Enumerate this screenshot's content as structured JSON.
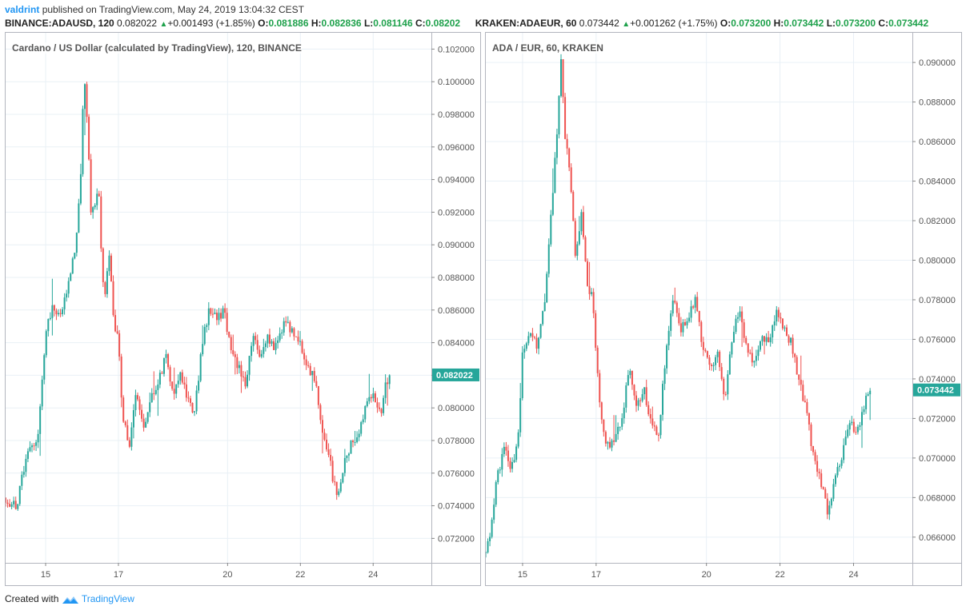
{
  "header": {
    "author": "valdrint",
    "published": "published on TradingView.com, May 24, 2019 13:04:32 CEST"
  },
  "left": {
    "symbol": "BINANCE:ADAUSD, 120",
    "last": "0.082022",
    "change": "+0.001493 (+1.85%)",
    "o_label": "O:",
    "o": "0.081886",
    "h_label": "H:",
    "h": "0.082836",
    "l_label": "L:",
    "l": "0.081146",
    "c_label": "C:",
    "c": "0.08202",
    "title": "Cardano / US Dollar (calculated by TradingView), 120, BINANCE"
  },
  "right": {
    "symbol": "KRAKEN:ADAEUR, 60",
    "last": "0.073442",
    "change": "+0.001262 (+1.75%)",
    "o_label": "O:",
    "o": "0.073200",
    "h_label": "H:",
    "h": "0.073442",
    "l_label": "L:",
    "l": "0.073200",
    "c_label": "C:",
    "c": "0.073442",
    "title": "ADA / EUR, 60, KRAKEN"
  },
  "footer": {
    "created": "Created with",
    "brand": "TradingView"
  },
  "colors": {
    "up": "#26a69a",
    "down": "#ef5350",
    "grid": "#e9f0f6",
    "label_bg": "#26a69a",
    "axis_text": "#555555"
  },
  "chart_data": [
    {
      "type": "candlestick",
      "title": "Cardano / US Dollar (calculated by TradingView), 120, BINANCE",
      "ylim": [
        0.0705,
        0.103
      ],
      "y_ticks": [
        "0.072000",
        "0.074000",
        "0.076000",
        "0.078000",
        "0.080000",
        "0.082000",
        "0.084000",
        "0.086000",
        "0.088000",
        "0.090000",
        "0.092000",
        "0.094000",
        "0.096000",
        "0.098000",
        "0.100000",
        "0.102000"
      ],
      "x_ticks": [
        {
          "label": "15",
          "day": 15
        },
        {
          "label": "17",
          "day": 17
        },
        {
          "label": "20",
          "day": 20
        },
        {
          "label": "22",
          "day": 22
        },
        {
          "label": "24",
          "day": 24
        }
      ],
      "x_range_days": [
        13.9,
        25.6
      ],
      "last_price_label": "0.082022",
      "last_price": 0.082022,
      "path": [
        [
          13.9,
          0.0745
        ],
        [
          14.2,
          0.0738
        ],
        [
          14.5,
          0.0775
        ],
        [
          14.8,
          0.0782
        ],
        [
          15.0,
          0.0848
        ],
        [
          15.2,
          0.0862
        ],
        [
          15.4,
          0.0855
        ],
        [
          15.6,
          0.0875
        ],
        [
          15.8,
          0.0895
        ],
        [
          15.95,
          0.0935
        ],
        [
          16.05,
          0.1005
        ],
        [
          16.15,
          0.0975
        ],
        [
          16.25,
          0.0915
        ],
        [
          16.45,
          0.0935
        ],
        [
          16.6,
          0.0865
        ],
        [
          16.75,
          0.0895
        ],
        [
          16.9,
          0.0845
        ],
        [
          17.0,
          0.0845
        ],
        [
          17.1,
          0.0795
        ],
        [
          17.3,
          0.0778
        ],
        [
          17.5,
          0.0812
        ],
        [
          17.7,
          0.0785
        ],
        [
          17.9,
          0.0808
        ],
        [
          18.1,
          0.0815
        ],
        [
          18.3,
          0.0832
        ],
        [
          18.5,
          0.0808
        ],
        [
          18.7,
          0.0822
        ],
        [
          18.9,
          0.0805
        ],
        [
          19.1,
          0.0798
        ],
        [
          19.3,
          0.0838
        ],
        [
          19.5,
          0.0862
        ],
        [
          19.7,
          0.0855
        ],
        [
          19.9,
          0.086
        ],
        [
          20.1,
          0.0832
        ],
        [
          20.3,
          0.0825
        ],
        [
          20.5,
          0.0815
        ],
        [
          20.7,
          0.0845
        ],
        [
          20.9,
          0.083
        ],
        [
          21.1,
          0.0843
        ],
        [
          21.3,
          0.0835
        ],
        [
          21.6,
          0.0855
        ],
        [
          21.8,
          0.0845
        ],
        [
          22.0,
          0.084
        ],
        [
          22.2,
          0.0823
        ],
        [
          22.4,
          0.0818
        ],
        [
          22.6,
          0.0785
        ],
        [
          22.8,
          0.0768
        ],
        [
          23.0,
          0.0745
        ],
        [
          23.2,
          0.0765
        ],
        [
          23.4,
          0.078
        ],
        [
          23.6,
          0.0782
        ],
        [
          23.8,
          0.08
        ],
        [
          24.0,
          0.0808
        ],
        [
          24.2,
          0.0795
        ],
        [
          24.35,
          0.0816
        ],
        [
          24.45,
          0.082
        ]
      ]
    },
    {
      "type": "candlestick",
      "title": "ADA / EUR, 60, KRAKEN",
      "ylim": [
        0.0647,
        0.0915
      ],
      "y_ticks": [
        "0.066000",
        "0.068000",
        "0.070000",
        "0.072000",
        "0.074000",
        "0.076000",
        "0.078000",
        "0.080000",
        "0.082000",
        "0.084000",
        "0.086000",
        "0.088000",
        "0.090000"
      ],
      "x_ticks": [
        {
          "label": "15",
          "day": 15
        },
        {
          "label": "17",
          "day": 17
        },
        {
          "label": "20",
          "day": 20
        },
        {
          "label": "22",
          "day": 22
        },
        {
          "label": "24",
          "day": 24
        }
      ],
      "x_range_days": [
        14.0,
        25.6
      ],
      "last_price_label": "0.073442",
      "last_price": 0.073442,
      "path": [
        [
          14.0,
          0.0652
        ],
        [
          14.15,
          0.0665
        ],
        [
          14.3,
          0.069
        ],
        [
          14.5,
          0.0705
        ],
        [
          14.7,
          0.0695
        ],
        [
          14.9,
          0.0712
        ],
        [
          15.0,
          0.0755
        ],
        [
          15.2,
          0.0765
        ],
        [
          15.4,
          0.0755
        ],
        [
          15.6,
          0.078
        ],
        [
          15.8,
          0.083
        ],
        [
          15.95,
          0.087
        ],
        [
          16.05,
          0.0905
        ],
        [
          16.15,
          0.0865
        ],
        [
          16.3,
          0.084
        ],
        [
          16.45,
          0.08
        ],
        [
          16.6,
          0.0825
        ],
        [
          16.75,
          0.079
        ],
        [
          16.9,
          0.078
        ],
        [
          17.1,
          0.0725
        ],
        [
          17.3,
          0.0705
        ],
        [
          17.5,
          0.071
        ],
        [
          17.7,
          0.072
        ],
        [
          17.9,
          0.0745
        ],
        [
          18.1,
          0.0725
        ],
        [
          18.3,
          0.0735
        ],
        [
          18.5,
          0.0718
        ],
        [
          18.7,
          0.0712
        ],
        [
          18.9,
          0.0755
        ],
        [
          19.1,
          0.078
        ],
        [
          19.3,
          0.0765
        ],
        [
          19.5,
          0.0772
        ],
        [
          19.7,
          0.078
        ],
        [
          19.9,
          0.0755
        ],
        [
          20.1,
          0.0745
        ],
        [
          20.3,
          0.0752
        ],
        [
          20.5,
          0.0728
        ],
        [
          20.7,
          0.0762
        ],
        [
          20.9,
          0.0775
        ],
        [
          21.1,
          0.0755
        ],
        [
          21.3,
          0.0748
        ],
        [
          21.5,
          0.0762
        ],
        [
          21.7,
          0.0758
        ],
        [
          21.9,
          0.0775
        ],
        [
          22.1,
          0.0765
        ],
        [
          22.3,
          0.0758
        ],
        [
          22.5,
          0.074
        ],
        [
          22.7,
          0.0725
        ],
        [
          22.9,
          0.0702
        ],
        [
          23.1,
          0.0688
        ],
        [
          23.3,
          0.0672
        ],
        [
          23.5,
          0.069
        ],
        [
          23.7,
          0.0702
        ],
        [
          23.9,
          0.0718
        ],
        [
          24.1,
          0.0712
        ],
        [
          24.3,
          0.0728
        ],
        [
          24.45,
          0.0734
        ]
      ]
    }
  ]
}
